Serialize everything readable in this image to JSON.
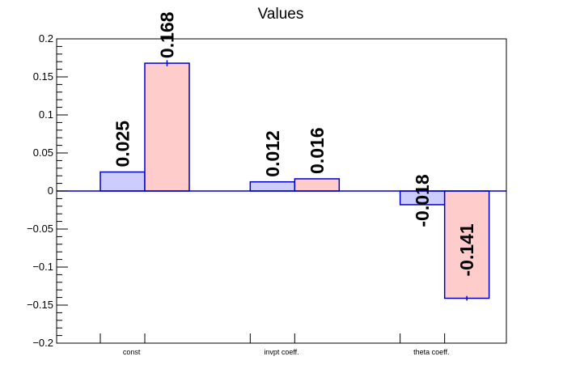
{
  "chart_data": {
    "type": "bar",
    "title": "Values",
    "xlabel": "",
    "ylabel": "",
    "categories": [
      "const",
      "invpt coeff.",
      "theta coeff."
    ],
    "series": [
      {
        "color": "#ccccff",
        "edge_color": "#0000cc",
        "values": [
          0.025,
          0.012,
          -0.018
        ],
        "labels": [
          "0.025",
          "0.012",
          "-0.018"
        ],
        "errors": [
          0,
          0,
          0
        ]
      },
      {
        "color": "#ffcccc",
        "edge_color": "#0000cc",
        "values": [
          0.168,
          0.016,
          -0.141
        ],
        "labels": [
          "0.168",
          "0.016",
          "-0.141"
        ],
        "errors": [
          0.004,
          0,
          0.003
        ]
      }
    ],
    "ylim": [
      -0.2,
      0.2
    ],
    "yticks": [
      -0.2,
      -0.15,
      -0.1,
      -0.05,
      0,
      0.05,
      0.1,
      0.15,
      0.2
    ],
    "ytick_labels": [
      "−0.2",
      "−0.15",
      "−0.1",
      "−0.05",
      "0",
      "0.05",
      "0.1",
      "0.15",
      "0.2"
    ],
    "grid": false,
    "zero_line": true,
    "legend": "none"
  }
}
